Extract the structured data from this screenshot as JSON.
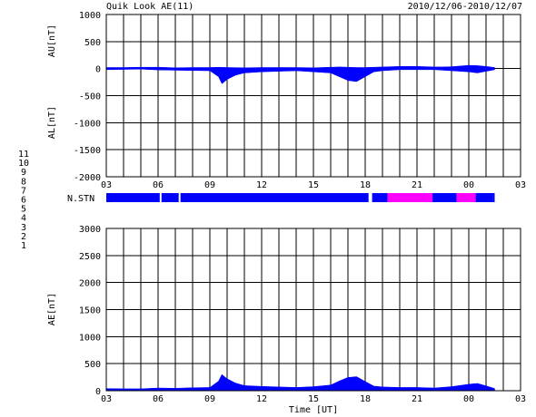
{
  "header": {
    "title": "Quik Look AE(11)",
    "date_range": "2010/12/06-2010/12/07"
  },
  "chart_data": [
    {
      "id": "au-al-panel",
      "type": "area",
      "ylabel_top": "AU[nT]",
      "ylabel_bottom": "AL[nT]",
      "ylim": [
        -2000,
        1000
      ],
      "yticks": [
        1000,
        500,
        0,
        -500,
        -1000,
        -1500,
        -2000
      ],
      "xticks": [
        "03",
        "06",
        "09",
        "12",
        "15",
        "18",
        "21",
        "00",
        "03"
      ],
      "xlim_hours": [
        3,
        27
      ],
      "grid": true,
      "series": [
        {
          "name": "AU",
          "x": [
            3.0,
            4.0,
            5.0,
            6.0,
            7.0,
            8.0,
            9.0,
            9.5,
            10.0,
            11.0,
            12.0,
            13.0,
            14.0,
            15.0,
            16.0,
            16.5,
            17.0,
            17.5,
            18.0,
            18.5,
            19.0,
            20.0,
            21.0,
            22.0,
            22.5,
            23.0,
            24.0,
            24.5,
            25.0,
            25.5
          ],
          "values": [
            20,
            20,
            25,
            25,
            15,
            20,
            20,
            25,
            20,
            15,
            20,
            20,
            20,
            15,
            25,
            30,
            25,
            20,
            20,
            25,
            30,
            40,
            40,
            30,
            30,
            35,
            60,
            55,
            40,
            20
          ]
        },
        {
          "name": "AL",
          "x": [
            3.0,
            4.0,
            5.0,
            6.0,
            7.0,
            8.0,
            9.0,
            9.5,
            9.7,
            10.0,
            10.5,
            11.0,
            12.0,
            13.0,
            14.0,
            15.0,
            16.0,
            16.5,
            17.0,
            17.5,
            18.0,
            18.5,
            19.0,
            20.0,
            21.0,
            22.0,
            23.0,
            24.0,
            24.5,
            25.0,
            25.5
          ],
          "values": [
            -20,
            -15,
            -10,
            -25,
            -30,
            -35,
            -40,
            -150,
            -280,
            -200,
            -120,
            -80,
            -60,
            -50,
            -40,
            -60,
            -80,
            -150,
            -220,
            -240,
            -150,
            -60,
            -40,
            -20,
            -20,
            -20,
            -40,
            -60,
            -80,
            -50,
            -20
          ]
        }
      ]
    },
    {
      "id": "n-stn-bar",
      "type": "bar",
      "label": "N.STN",
      "x_hours": [
        3.0,
        6.1,
        6.2,
        7.2,
        7.3,
        18.2,
        18.4,
        19.3,
        21.9,
        23.3,
        24.4,
        25.4,
        25.5
      ],
      "station_counts": [
        9,
        7,
        9,
        7,
        9,
        7,
        9,
        10,
        9,
        10,
        9,
        9,
        9
      ],
      "station_legend": [
        {
          "label": "11",
          "color": "#00e0ff"
        },
        {
          "label": "10",
          "color": "#ff00ff"
        },
        {
          "label": "9",
          "color": "#0000ff"
        },
        {
          "label": "8",
          "color": "#ffff00"
        },
        {
          "label": "7",
          "color": "#c0ff00"
        },
        {
          "label": "6",
          "color": "#ff0000"
        },
        {
          "label": "5",
          "color": "#c0c0c0"
        },
        {
          "label": "4",
          "color": "#a0a0a0"
        },
        {
          "label": "3",
          "color": "#00c0c0"
        },
        {
          "label": "2",
          "color": "#a020a0"
        },
        {
          "label": "1",
          "color": "#0000c0"
        }
      ]
    },
    {
      "id": "ae-panel",
      "type": "area",
      "ylabel": "AE[nT]",
      "xlabel": "Time [UT]",
      "ylim": [
        0,
        3000
      ],
      "yticks": [
        3000,
        2500,
        2000,
        1500,
        1000,
        500,
        0
      ],
      "xticks": [
        "03",
        "06",
        "09",
        "12",
        "15",
        "18",
        "21",
        "00",
        "03"
      ],
      "xlim_hours": [
        3,
        27
      ],
      "grid": true,
      "series": [
        {
          "name": "AE",
          "x": [
            3.0,
            4.0,
            5.0,
            6.0,
            7.0,
            8.0,
            9.0,
            9.5,
            9.7,
            10.0,
            10.5,
            11.0,
            12.0,
            13.0,
            14.0,
            15.0,
            16.0,
            16.5,
            17.0,
            17.5,
            18.0,
            18.5,
            19.0,
            20.0,
            21.0,
            22.0,
            23.0,
            24.0,
            24.5,
            25.0,
            25.5
          ],
          "values": [
            40,
            35,
            35,
            50,
            45,
            55,
            60,
            175,
            300,
            220,
            140,
            95,
            80,
            70,
            60,
            75,
            105,
            180,
            245,
            260,
            170,
            85,
            70,
            60,
            60,
            50,
            75,
            120,
            135,
            90,
            40
          ]
        }
      ]
    }
  ]
}
